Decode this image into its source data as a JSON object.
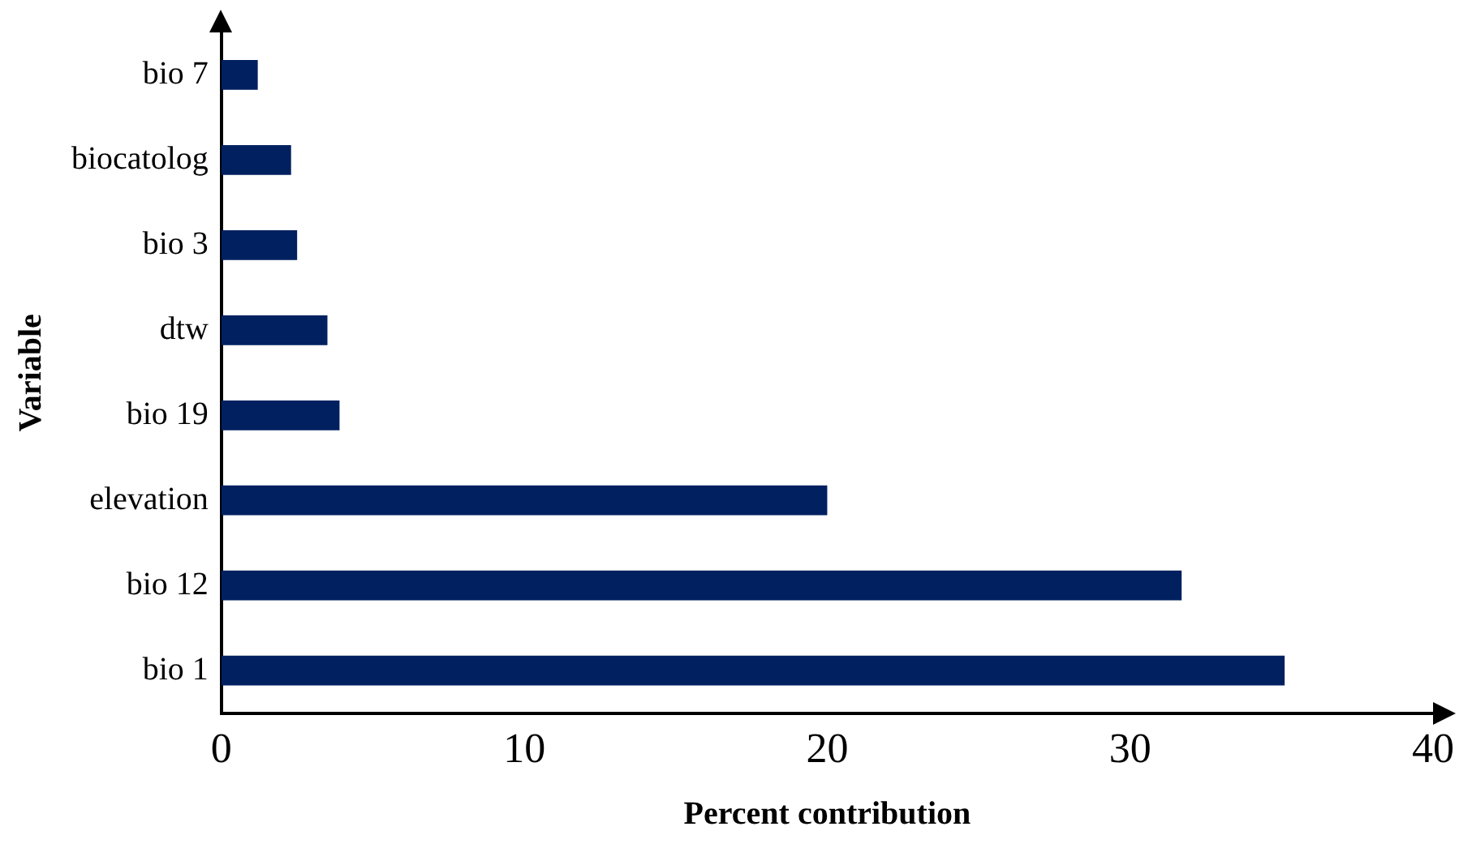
{
  "chart_data": {
    "type": "bar",
    "orientation": "horizontal",
    "xlabel": "Percent contribution",
    "ylabel": "Variable",
    "categories": [
      "bio 7",
      "biocatolog",
      "bio 3",
      "dtw",
      "bio 19",
      "elevation",
      "bio 12",
      "bio 1"
    ],
    "values": [
      1.2,
      2.3,
      2.5,
      3.5,
      3.9,
      20.0,
      31.7,
      35.1
    ],
    "color": "#002060",
    "xlim": [
      0,
      40
    ],
    "xticks": [
      0,
      10,
      20,
      30,
      40
    ],
    "grid": false,
    "legend": false
  }
}
